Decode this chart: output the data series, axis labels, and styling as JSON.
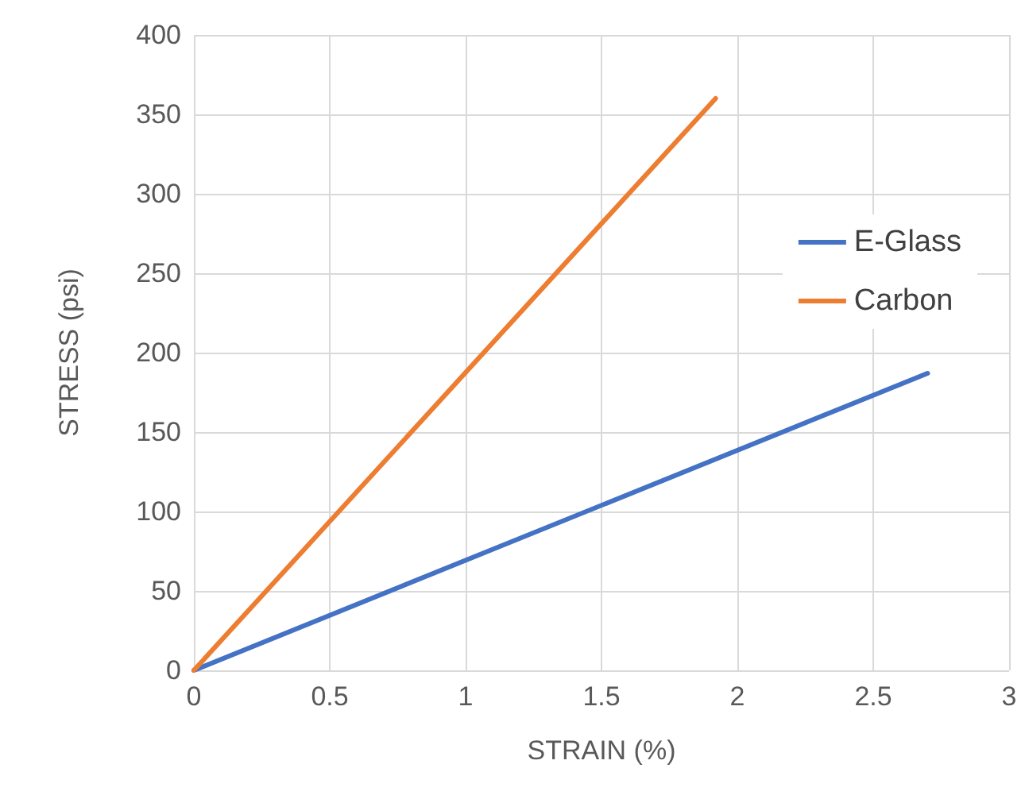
{
  "chart_data": {
    "type": "line",
    "xlabel": "STRAIN (%)",
    "ylabel": "STRESS (psi)",
    "series": [
      {
        "name": "E-Glass",
        "color": "#4472c4",
        "x": [
          0,
          2.7
        ],
        "values": [
          0,
          187
        ]
      },
      {
        "name": "Carbon",
        "color": "#ed7d31",
        "x": [
          0,
          1.92
        ],
        "values": [
          0,
          360
        ]
      }
    ],
    "xlim": [
      0,
      3
    ],
    "xticks": [
      0,
      0.5,
      1,
      1.5,
      2,
      2.5,
      3
    ],
    "ylim": [
      0,
      400
    ],
    "yticks": [
      0,
      50,
      100,
      150,
      200,
      250,
      300,
      350,
      400
    ],
    "grid": true,
    "legend": "right",
    "marker": "none",
    "line_style": "solid"
  }
}
